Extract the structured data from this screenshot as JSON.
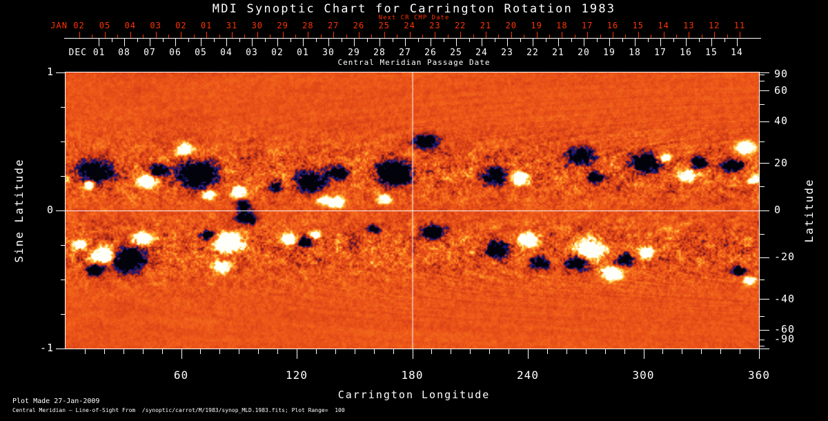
{
  "title": "MDI Synoptic Chart for Carrington Rotation 1983",
  "colors": {
    "background": "#000000",
    "axis": "#ffffff",
    "next_cr_axis": "#ff3300",
    "quiet_sun_orange": "#eb5218",
    "negative_polarity": "#1e1e8c",
    "positive_polarity": "#fffff8"
  },
  "top_axis": {
    "label": "Next CR CMP Date",
    "first_label": "JAN 02",
    "day_labels": [
      "05",
      "04",
      "03",
      "02",
      "01",
      "31",
      "30",
      "29",
      "28",
      "27",
      "26",
      "25",
      "24",
      "23",
      "22",
      "21",
      "20",
      "19",
      "18",
      "17",
      "16",
      "15",
      "14",
      "13",
      "12",
      "11"
    ]
  },
  "cmp_axis": {
    "label": "Central Meridian Passage Date",
    "first_label": "DEC 01",
    "day_labels": [
      "08",
      "07",
      "06",
      "05",
      "04",
      "03",
      "02",
      "01",
      "30",
      "29",
      "28",
      "27",
      "26",
      "25",
      "24",
      "23",
      "22",
      "21",
      "20",
      "19",
      "18",
      "17",
      "16",
      "15",
      "14"
    ]
  },
  "footer": {
    "line1": "Plot Made 27-Jan-2009",
    "line2": "Central Meridian — Line-of-Sight From  /synoptic/carrot/M/1983/synop_MLD.1983.fits; Plot Range=  100"
  },
  "chart_data": {
    "type": "heatmap",
    "title": "MDI Synoptic Chart for Carrington Rotation 1983",
    "xlabel": "Carrington Longitude",
    "ylabel_left": "Sine Latitude",
    "ylabel_right": "Latitude",
    "x_range": [
      0,
      360
    ],
    "x_major_ticks": [
      60,
      120,
      180,
      240,
      300,
      360
    ],
    "x_minor_step_deg": 10,
    "y_left_range": [
      -1,
      1
    ],
    "y_left_major_ticks": [
      1,
      0,
      -1
    ],
    "y_left_minor_ticks": [
      0.75,
      0.5,
      0.25,
      -0.25,
      -0.5,
      -0.75
    ],
    "y_right_major_ticks_deg": [
      90,
      60,
      40,
      20,
      0,
      -20,
      -40,
      -60,
      -90
    ],
    "y_right_minor_ticks_deg": [
      80,
      70,
      50,
      30,
      10,
      -10,
      -30,
      -50,
      -70,
      -80
    ],
    "grid": false,
    "crosshair": {
      "longitude_deg": 180,
      "sine_latitude": 0
    },
    "plot_range_gauss": 100,
    "quiet_level": 0.535,
    "activity_band": {
      "center_abs_sine_latitude": 0.28,
      "width": 0.25
    },
    "colormap": [
      [
        0.0,
        [
          2,
          2,
          10
        ]
      ],
      [
        0.08,
        [
          15,
          15,
          70
        ]
      ],
      [
        0.15,
        [
          30,
          30,
          140
        ]
      ],
      [
        0.21,
        [
          45,
          25,
          110
        ]
      ],
      [
        0.28,
        [
          115,
          25,
          30
        ]
      ],
      [
        0.4,
        [
          196,
          52,
          22
        ]
      ],
      [
        0.53,
        [
          235,
          82,
          24
        ]
      ],
      [
        0.64,
        [
          247,
          116,
          30
        ]
      ],
      [
        0.74,
        [
          252,
          162,
          45
        ]
      ],
      [
        0.83,
        [
          255,
          212,
          85
        ]
      ],
      [
        0.91,
        [
          255,
          243,
          185
        ]
      ],
      [
        1.0,
        [
          255,
          255,
          250
        ]
      ]
    ],
    "active_regions": [
      [
        14.3,
        0.275,
        18,
        -0.75
      ],
      [
        11.8,
        0.185,
        7,
        0.6
      ],
      [
        41.2,
        0.215,
        11,
        0.7
      ],
      [
        47.6,
        0.295,
        10,
        -0.65
      ],
      [
        62.0,
        0.45,
        9,
        0.65
      ],
      [
        68.1,
        0.265,
        20,
        -0.8
      ],
      [
        74.1,
        0.115,
        8,
        0.6
      ],
      [
        89.6,
        0.135,
        10,
        0.7
      ],
      [
        92.1,
        0.04,
        8,
        -0.6
      ],
      [
        109.3,
        0.175,
        8,
        -0.6
      ],
      [
        127.2,
        0.21,
        16,
        -0.75
      ],
      [
        133.3,
        0.075,
        7,
        0.6
      ],
      [
        141.5,
        0.275,
        10,
        -0.65
      ],
      [
        140.4,
        0.065,
        9,
        0.7
      ],
      [
        170.1,
        0.275,
        19,
        -0.85
      ],
      [
        165.1,
        0.085,
        8,
        0.6
      ],
      [
        187.0,
        0.5,
        13,
        -0.6
      ],
      [
        222.1,
        0.25,
        13,
        -0.7
      ],
      [
        235.3,
        0.235,
        10,
        0.7
      ],
      [
        267.6,
        0.4,
        14,
        -0.7
      ],
      [
        274.7,
        0.245,
        9,
        -0.6
      ],
      [
        301.2,
        0.345,
        16,
        -0.75
      ],
      [
        310.2,
        0.385,
        8,
        0.65
      ],
      [
        322.8,
        0.25,
        9,
        0.7
      ],
      [
        328.5,
        0.345,
        9,
        -0.6
      ],
      [
        352.8,
        0.455,
        10,
        0.75
      ],
      [
        346.4,
        0.325,
        11,
        -0.7
      ],
      [
        357.5,
        0.225,
        7,
        0.6
      ],
      [
        7.2,
        -0.25,
        8,
        0.6
      ],
      [
        19.7,
        -0.325,
        13,
        0.8
      ],
      [
        32.6,
        -0.355,
        18,
        -0.8
      ],
      [
        39.8,
        -0.205,
        10,
        0.7
      ],
      [
        15.0,
        -0.43,
        10,
        -0.65
      ],
      [
        84.2,
        -0.23,
        15,
        0.85
      ],
      [
        93.5,
        -0.055,
        11,
        -0.7
      ],
      [
        80.9,
        -0.405,
        10,
        0.7
      ],
      [
        73.8,
        -0.18,
        8,
        -0.6
      ],
      [
        116.8,
        -0.205,
        9,
        0.7
      ],
      [
        123.9,
        -0.23,
        10,
        -0.65
      ],
      [
        129.3,
        -0.18,
        7,
        0.6
      ],
      [
        159.8,
        -0.13,
        7,
        -0.55
      ],
      [
        190.2,
        -0.155,
        12,
        -0.6
      ],
      [
        224.2,
        -0.28,
        13,
        -0.7
      ],
      [
        240.3,
        -0.205,
        11,
        0.75
      ],
      [
        245.7,
        -0.38,
        10,
        -0.65
      ],
      [
        272.6,
        -0.28,
        15,
        0.85
      ],
      [
        265.4,
        -0.38,
        12,
        -0.75
      ],
      [
        283.3,
        -0.455,
        11,
        0.75
      ],
      [
        290.5,
        -0.355,
        10,
        -0.65
      ],
      [
        301.2,
        -0.305,
        9,
        0.65
      ],
      [
        355.0,
        -0.505,
        7,
        0.6
      ],
      [
        349.6,
        -0.43,
        8,
        -0.6
      ]
    ]
  }
}
